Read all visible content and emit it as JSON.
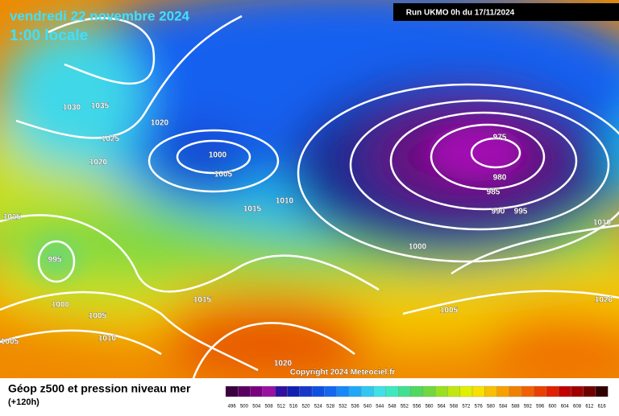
{
  "header": {
    "title": "vendredi 22 novembre 2024",
    "subtitle": "1:00 locale",
    "run": "Run UKMO 0h du 17/11/2024"
  },
  "isobar_labels": [
    1030,
    1035,
    1020,
    1025,
    1020,
    1000,
    1005,
    1015,
    1015,
    1010,
    995,
    1000,
    1005,
    1010,
    1005,
    1015,
    1020,
    975,
    980,
    985,
    990,
    995,
    1000,
    1005,
    1010,
    1020
  ],
  "copyright": "Copyright 2024 Meteociel.fr",
  "legend": {
    "title": "Géop z500 et pression niveau mer",
    "lead_time": "(+120h)",
    "scale": [
      496,
      500,
      504,
      508,
      512,
      516,
      520,
      524,
      528,
      532,
      536,
      540,
      544,
      548,
      552,
      556,
      560,
      564,
      568,
      572,
      576,
      580,
      584,
      588,
      592,
      596,
      600,
      604,
      608,
      612,
      616
    ]
  }
}
